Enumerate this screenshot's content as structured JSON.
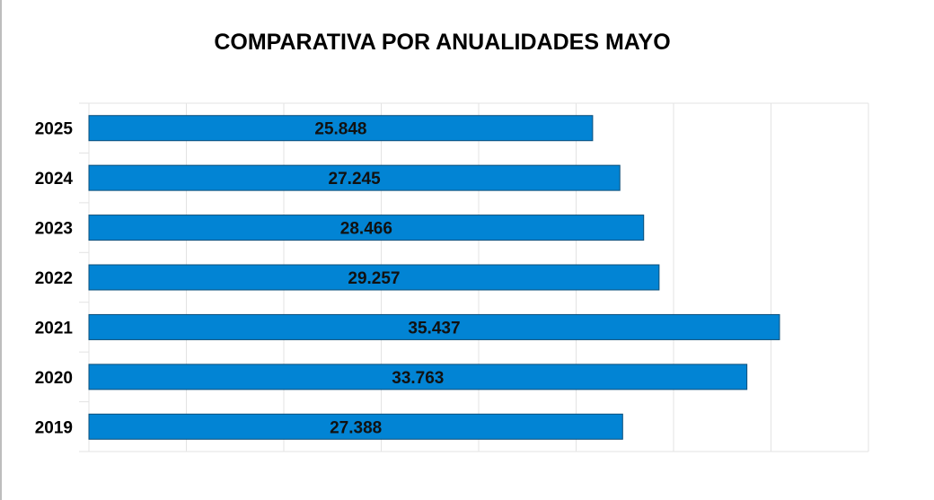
{
  "chart_data": {
    "type": "bar",
    "orientation": "horizontal",
    "title": "COMPARATIVA POR ANUALIDADES MAYO",
    "categories": [
      "2025",
      "2024",
      "2023",
      "2022",
      "2021",
      "2020",
      "2019"
    ],
    "values": [
      25848,
      27245,
      28466,
      29257,
      35437,
      33763,
      27388
    ],
    "data_labels": [
      "25.848",
      "27.245",
      "28.466",
      "29.257",
      "35.437",
      "33.763",
      "27.388"
    ],
    "xlabel": "",
    "ylabel": "",
    "xlim": [
      0,
      40000
    ],
    "x_grid_step": 5000,
    "grid": true,
    "x_tick_labels_shown": false,
    "legend": "none",
    "bar_color": "#0284d4"
  }
}
